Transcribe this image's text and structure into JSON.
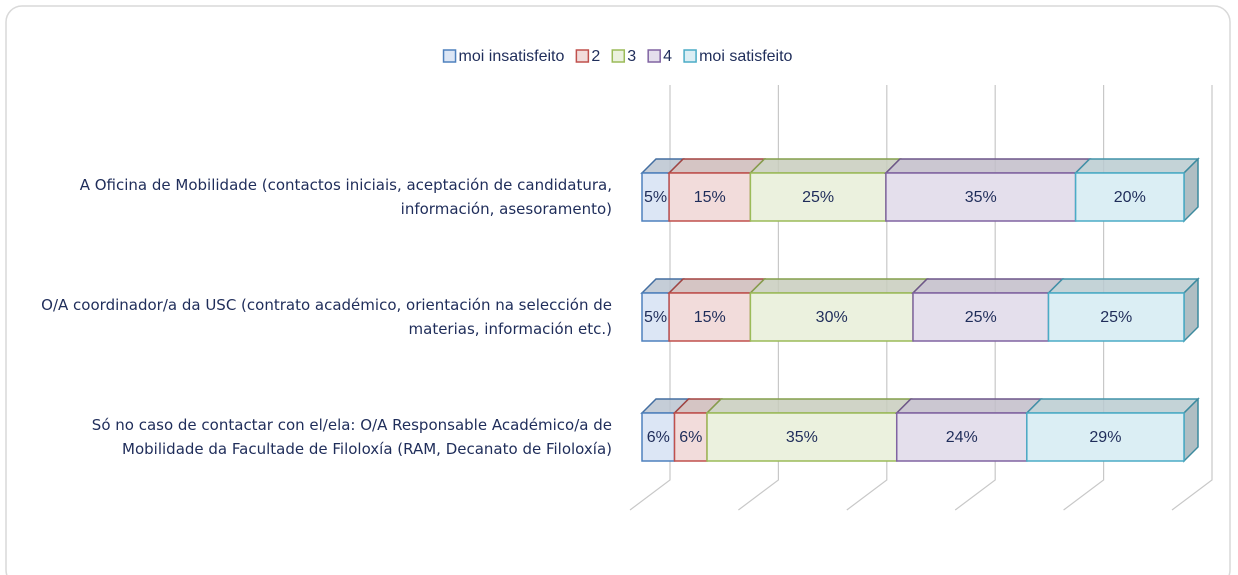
{
  "chart_data": {
    "type": "bar",
    "orientation": "horizontal",
    "stacked": true,
    "categories": [
      "A Oficina de Mobilidade (contactos iniciais, aceptación de candidatura, información, asesoramento)",
      "O/A coordinador/a da USC (contrato académico, orientación na selección de materias, información etc.)",
      "Só no caso de contactar con el/ela: O/A Responsable Académico/a de Mobilidade da Facultade de Filoloxía (RAM, Decanato de Filoloxía)"
    ],
    "series": [
      {
        "name": "moi insatisfeito",
        "color": "#dce6f5",
        "border": "#4f81bd",
        "values": [
          5,
          5,
          6
        ],
        "value_labels": [
          "5%",
          "5%",
          "6%"
        ]
      },
      {
        "name": "2",
        "color": "#f2dcdb",
        "border": "#c0504d",
        "values": [
          15,
          15,
          6
        ],
        "value_labels": [
          "15%",
          "15%",
          "6%"
        ]
      },
      {
        "name": "3",
        "color": "#ebf1de",
        "border": "#9bbb59",
        "values": [
          25,
          30,
          35
        ],
        "value_labels": [
          "25%",
          "30%",
          "35%"
        ]
      },
      {
        "name": "4",
        "color": "#e4dfec",
        "border": "#8064a2",
        "values": [
          35,
          25,
          24
        ],
        "value_labels": [
          "35%",
          "25%",
          "24%"
        ]
      },
      {
        "name": "moi satisfeito",
        "color": "#dbeef4",
        "border": "#4bacc6",
        "values": [
          20,
          25,
          29
        ],
        "value_labels": [
          "20%",
          "25%",
          "29%"
        ]
      }
    ],
    "xlim": [
      0,
      100
    ],
    "xticks": [
      0,
      20,
      40,
      60,
      80,
      100
    ],
    "grid": true,
    "legend": "top"
  }
}
